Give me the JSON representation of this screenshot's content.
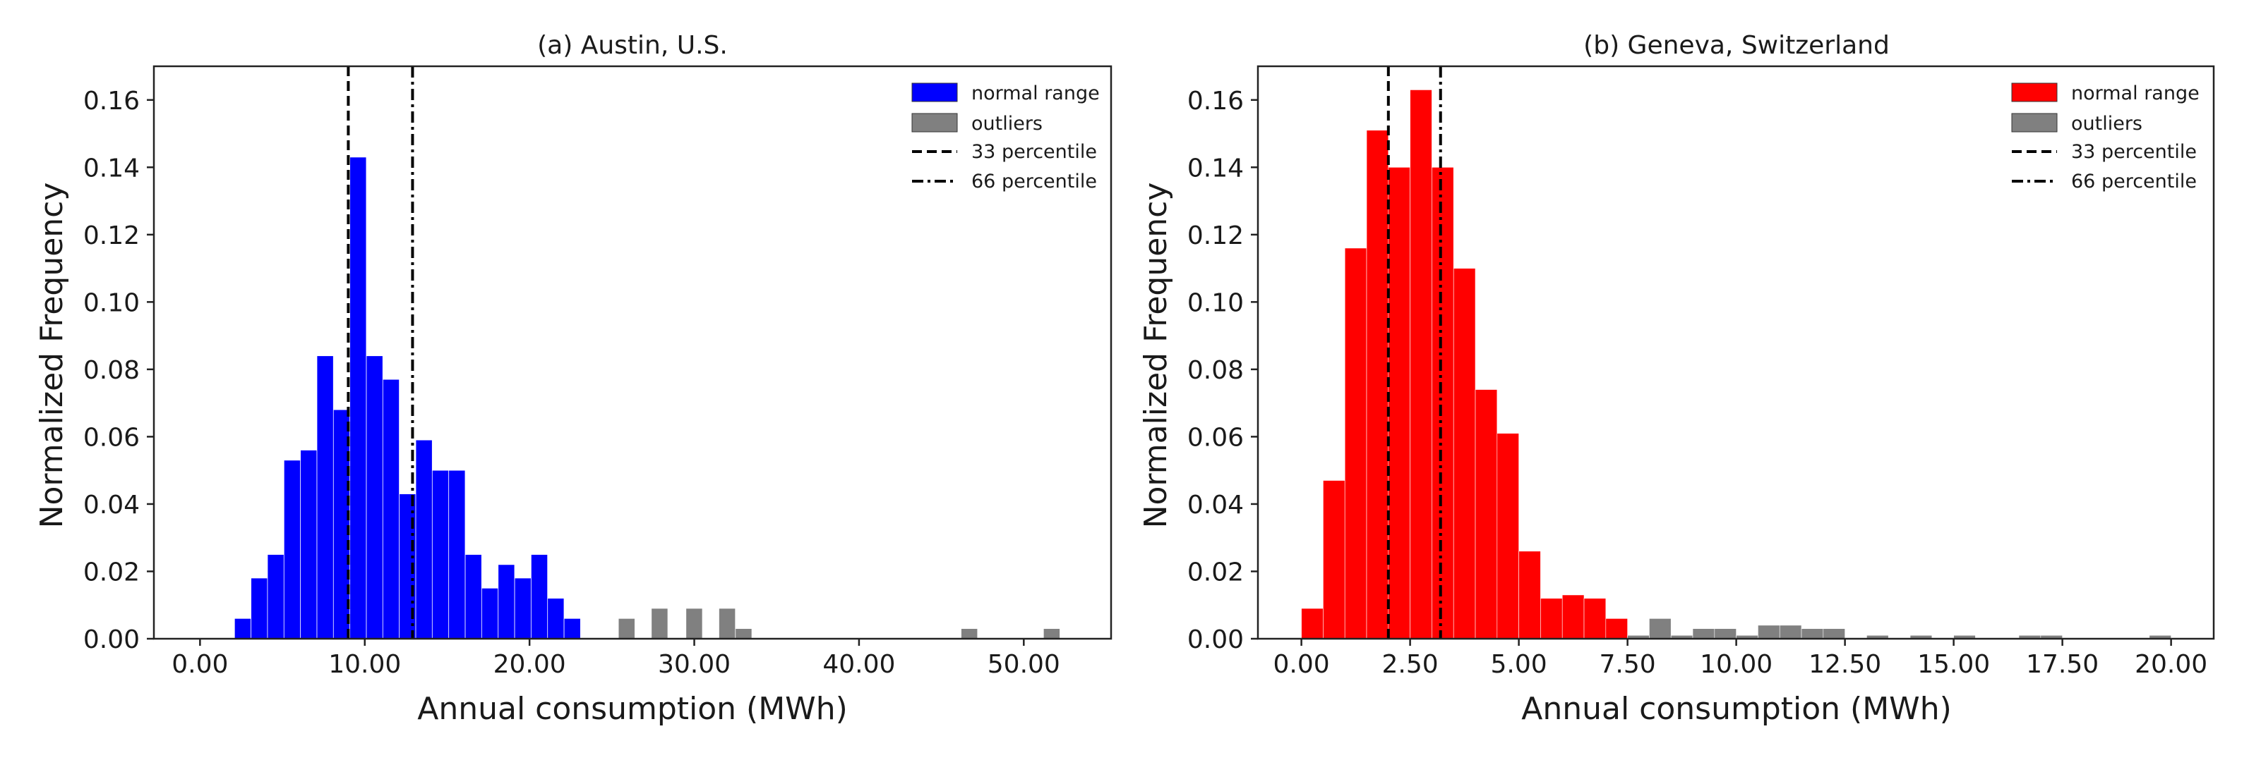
{
  "chart_data": [
    {
      "type": "bar",
      "title": "(a) Austin, U.S.",
      "xlabel": "Annual consumption (MWh)",
      "ylabel": "Normalized Frequency",
      "xlim": [
        -2.8,
        55.3
      ],
      "ylim": [
        0.0,
        0.17
      ],
      "grid": false,
      "legend_position": "top-right",
      "bin_width": 0.99,
      "xticks": [
        0,
        10,
        20,
        30,
        40,
        50
      ],
      "xtick_labels": [
        "0.00",
        "10.00",
        "20.00",
        "30.00",
        "40.00",
        "50.00"
      ],
      "yticks": [
        0.0,
        0.02,
        0.04,
        0.06,
        0.08,
        0.1,
        0.12,
        0.14,
        0.16
      ],
      "ytick_labels": [
        "0.00",
        "0.02",
        "0.04",
        "0.06",
        "0.08",
        "0.10",
        "0.12",
        "0.14",
        "0.16"
      ],
      "series": [
        {
          "name": "normal range",
          "color": "#0000ff",
          "bin_starts": [
            2.1,
            3.1,
            4.1,
            5.1,
            6.1,
            7.1,
            8.1,
            9.1,
            10.1,
            11.1,
            12.1,
            13.1,
            14.1,
            15.1,
            16.1,
            17.1,
            18.1,
            19.1,
            20.1,
            21.1,
            22.1,
            23.1
          ],
          "values": [
            0.006,
            0.018,
            0.025,
            0.053,
            0.056,
            0.084,
            0.068,
            0.143,
            0.084,
            0.077,
            0.043,
            0.059,
            0.05,
            0.05,
            0.025,
            0.015,
            0.022,
            0.018,
            0.025,
            0.012,
            0.006,
            0.0
          ]
        },
        {
          "name": "outliers",
          "color": "#808080",
          "bin_starts": [
            25.4,
            27.4,
            29.5,
            31.5,
            32.5,
            46.2,
            51.2
          ],
          "values": [
            0.006,
            0.009,
            0.009,
            0.009,
            0.003,
            0.003,
            0.003
          ]
        }
      ],
      "vlines": [
        {
          "name": "33 percentile",
          "x": 9.0,
          "style": "dashed"
        },
        {
          "name": "66 percentile",
          "x": 12.9,
          "style": "dashdot"
        }
      ],
      "legend": [
        "normal range",
        "outliers",
        "33 percentile",
        "66 percentile"
      ]
    },
    {
      "type": "bar",
      "title": "(b) Geneva, Switzerland",
      "xlabel": "Annual consumption (MWh)",
      "ylabel": "Normalized Frequency",
      "xlim": [
        -1.0,
        20.98
      ],
      "ylim": [
        0.0,
        0.17
      ],
      "grid": false,
      "legend_position": "top-right",
      "bin_width": 0.5,
      "xticks": [
        0,
        2.5,
        5,
        7.5,
        10,
        12.5,
        15,
        17.5,
        20
      ],
      "xtick_labels": [
        "0.00",
        "2.50",
        "5.00",
        "7.50",
        "10.00",
        "12.50",
        "15.00",
        "17.50",
        "20.00"
      ],
      "yticks": [
        0.0,
        0.02,
        0.04,
        0.06,
        0.08,
        0.1,
        0.12,
        0.14,
        0.16
      ],
      "ytick_labels": [
        "0.00",
        "0.02",
        "0.04",
        "0.06",
        "0.08",
        "0.10",
        "0.12",
        "0.14",
        "0.16"
      ],
      "series": [
        {
          "name": "normal range",
          "color": "#ff0000",
          "bin_starts": [
            0.0,
            0.5,
            1.0,
            1.5,
            2.0,
            2.5,
            3.0,
            3.5,
            4.0,
            4.5,
            5.0,
            5.5,
            6.0,
            6.5,
            7.0
          ],
          "values": [
            0.009,
            0.047,
            0.116,
            0.151,
            0.14,
            0.163,
            0.14,
            0.11,
            0.074,
            0.061,
            0.026,
            0.012,
            0.013,
            0.012,
            0.006
          ]
        },
        {
          "name": "outliers",
          "color": "#808080",
          "bin_starts": [
            7.5,
            8.0,
            8.5,
            9.0,
            9.5,
            10.0,
            10.5,
            11.0,
            11.5,
            12.0,
            13.0,
            14.0,
            15.0,
            16.5,
            17.0,
            19.5
          ],
          "values": [
            0.001,
            0.006,
            0.001,
            0.003,
            0.003,
            0.001,
            0.004,
            0.004,
            0.003,
            0.003,
            0.001,
            0.001,
            0.001,
            0.001,
            0.001,
            0.001
          ]
        }
      ],
      "vlines": [
        {
          "name": "33 percentile",
          "x": 2.0,
          "style": "dashed"
        },
        {
          "name": "66 percentile",
          "x": 3.2,
          "style": "dashdot"
        }
      ],
      "legend": [
        "normal range",
        "outliers",
        "33 percentile",
        "66 percentile"
      ]
    }
  ]
}
